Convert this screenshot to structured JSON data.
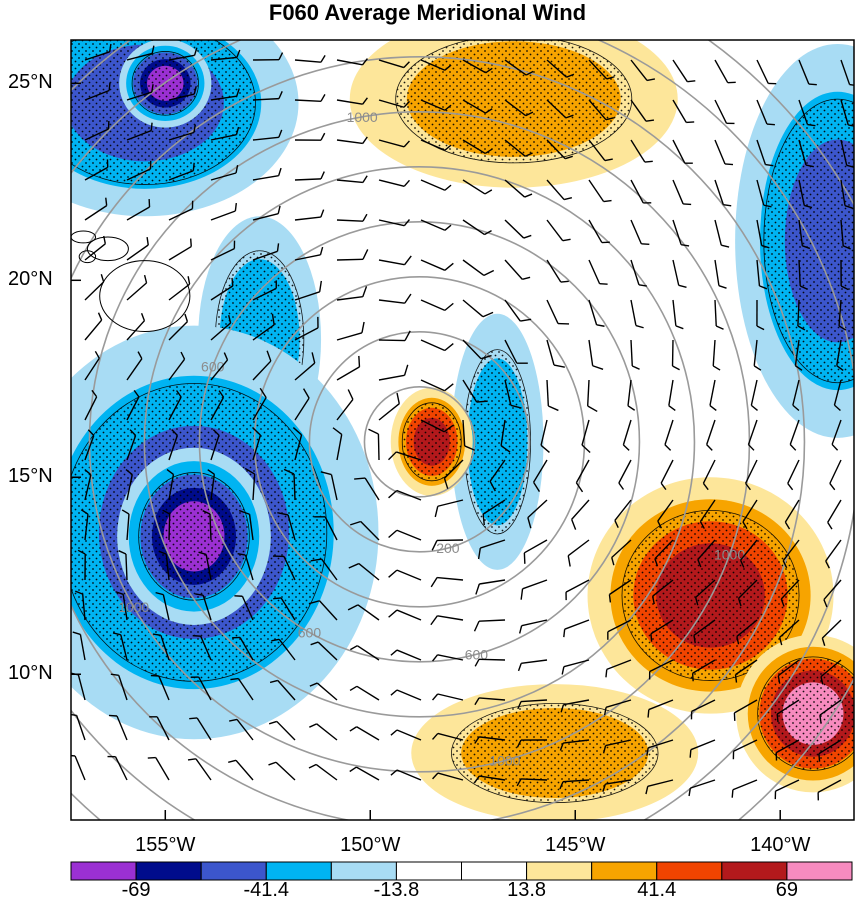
{
  "chart_data": {
    "type": "heatmap",
    "title": "F060 Average Meridional Wind",
    "lat_ticks": [
      {
        "label": "25°N",
        "value": 25
      },
      {
        "label": "20°N",
        "value": 20
      },
      {
        "label": "15°N",
        "value": 15
      },
      {
        "label": "10°N",
        "value": 10
      }
    ],
    "lon_ticks": [
      {
        "label": "155°W",
        "value": -155
      },
      {
        "label": "150°W",
        "value": -150
      },
      {
        "label": "145°W",
        "value": -145
      },
      {
        "label": "140°W",
        "value": -140
      }
    ],
    "xlim": [
      -157.3,
      -138.2
    ],
    "ylim": [
      6.3,
      26.1
    ],
    "colorbar": {
      "colors": [
        "#9b30d3",
        "#000c8c",
        "#3c56cc",
        "#00b4f2",
        "#a8dcf4",
        "#ffffff",
        "#ffffff",
        "#fde69a",
        "#f7a400",
        "#f14400",
        "#b3191c",
        "#f78bbf"
      ],
      "labels": [
        "-69",
        "-41.4",
        "-13.8",
        "13.8",
        "41.4",
        "69"
      ],
      "label_values": [
        -69,
        -41.4,
        -13.8,
        13.8,
        41.4,
        69
      ]
    },
    "range_rings": {
      "center": [
        -148.8,
        15.9
      ],
      "labels": [
        "200",
        "600",
        "1000"
      ]
    },
    "regions": [
      {
        "value": -50,
        "lon": -154.3,
        "lat": 13.6,
        "rx": 3.6,
        "ry": 4.2
      },
      {
        "value": -72,
        "lon": -154.3,
        "lat": 13.5,
        "rx": 1.5,
        "ry": 1.8
      },
      {
        "value": -55,
        "lon": -155.5,
        "lat": 24.5,
        "rx": 3.0,
        "ry": 2.3
      },
      {
        "value": -72,
        "lon": -155.0,
        "lat": 25.0,
        "rx": 0.9,
        "ry": 0.9
      },
      {
        "value": -30,
        "lon": -152.7,
        "lat": 18.5,
        "rx": 1.2,
        "ry": 2.5
      },
      {
        "value": -40,
        "lon": -146.9,
        "lat": 15.9,
        "rx": 0.9,
        "ry": 2.6
      },
      {
        "value": -50,
        "lon": -138.6,
        "lat": 21.0,
        "rx": 2.0,
        "ry": 4.0
      },
      {
        "value": 60,
        "lon": -148.5,
        "lat": 15.9,
        "rx": 0.8,
        "ry": 1.1
      },
      {
        "value": 40,
        "lon": -146.5,
        "lat": 24.6,
        "rx": 3.2,
        "ry": 1.8
      },
      {
        "value": 60,
        "lon": -141.7,
        "lat": 12.0,
        "rx": 2.4,
        "ry": 2.4
      },
      {
        "value": 70,
        "lon": -139.2,
        "lat": 9.0,
        "rx": 1.5,
        "ry": 1.6
      },
      {
        "value": 40,
        "lon": -145.5,
        "lat": 8.0,
        "rx": 2.8,
        "ry": 1.4
      }
    ]
  }
}
